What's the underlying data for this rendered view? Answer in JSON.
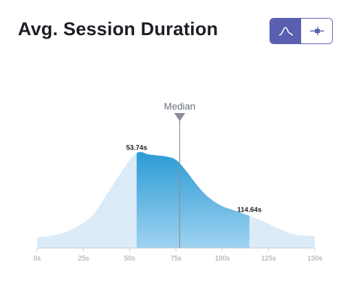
{
  "header": {
    "title": "Avg. Session Duration"
  },
  "toggle": {
    "options": [
      {
        "icon": "distribution-curve-icon",
        "active": true
      },
      {
        "icon": "box-plot-icon",
        "active": false
      }
    ],
    "accent": "#5a5fb0"
  },
  "chart_data": {
    "type": "area",
    "title": "Avg. Session Duration",
    "xlabel": "",
    "ylabel": "",
    "x_unit": "s",
    "xlim": [
      0,
      150
    ],
    "x_ticks": [
      0,
      25,
      50,
      75,
      100,
      125,
      150
    ],
    "x_tick_labels": [
      "0s",
      "25s",
      "50s",
      "75s",
      "100s",
      "125s",
      "150s"
    ],
    "series": [
      {
        "x": [
          0,
          10,
          20,
          30,
          40,
          50,
          55,
          60,
          65,
          70,
          75,
          80,
          85,
          90,
          95,
          100,
          105,
          110,
          115,
          120,
          130,
          140,
          150
        ],
        "y": [
          0.1,
          0.12,
          0.18,
          0.3,
          0.55,
          0.8,
          0.87,
          0.85,
          0.84,
          0.83,
          0.8,
          0.71,
          0.6,
          0.5,
          0.43,
          0.38,
          0.35,
          0.32,
          0.29,
          0.26,
          0.18,
          0.12,
          0.11
        ]
      }
    ],
    "highlight_range": [
      53.74,
      114.64
    ],
    "highlight_labels": [
      "53.74s",
      "114.64s"
    ],
    "median": 77,
    "median_label": "Median",
    "colors": {
      "area_light": "#dcebf8",
      "band_top": "#2b9bd6",
      "band_bottom": "#9fd3f0",
      "median_line": "#8a8f96",
      "axis": "#c8ccd1"
    }
  }
}
